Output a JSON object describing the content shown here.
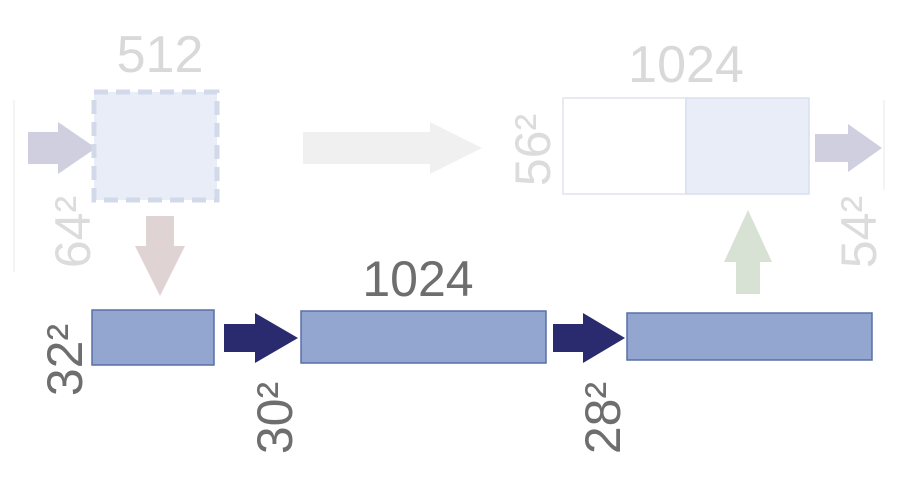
{
  "diagram": {
    "faded": {
      "top_left_channels": "512",
      "top_right_channels": "1024",
      "input_size": "64²",
      "concat_size": "56²",
      "output_size": "54²"
    },
    "bottom": {
      "channels": "1024",
      "size_a": "32²",
      "size_b": "30²",
      "size_c": "28²"
    },
    "colors": {
      "box_fill": "#93a6d0",
      "box_stroke": "#5a6ea8",
      "dark_arrow": "#2a2a6e",
      "label_dark": "#6e6e6e",
      "label_faded": "#d9d9d9",
      "faded_box_fill": "#e8edf8",
      "faded_box_stroke": "#d7dde8",
      "faded_arrow_gray": "#cfcfe0",
      "faded_arrow_down": "#e0d3d3",
      "faded_arrow_up": "#d8e2d4",
      "faded_arrow_light": "#eeeeee"
    }
  }
}
